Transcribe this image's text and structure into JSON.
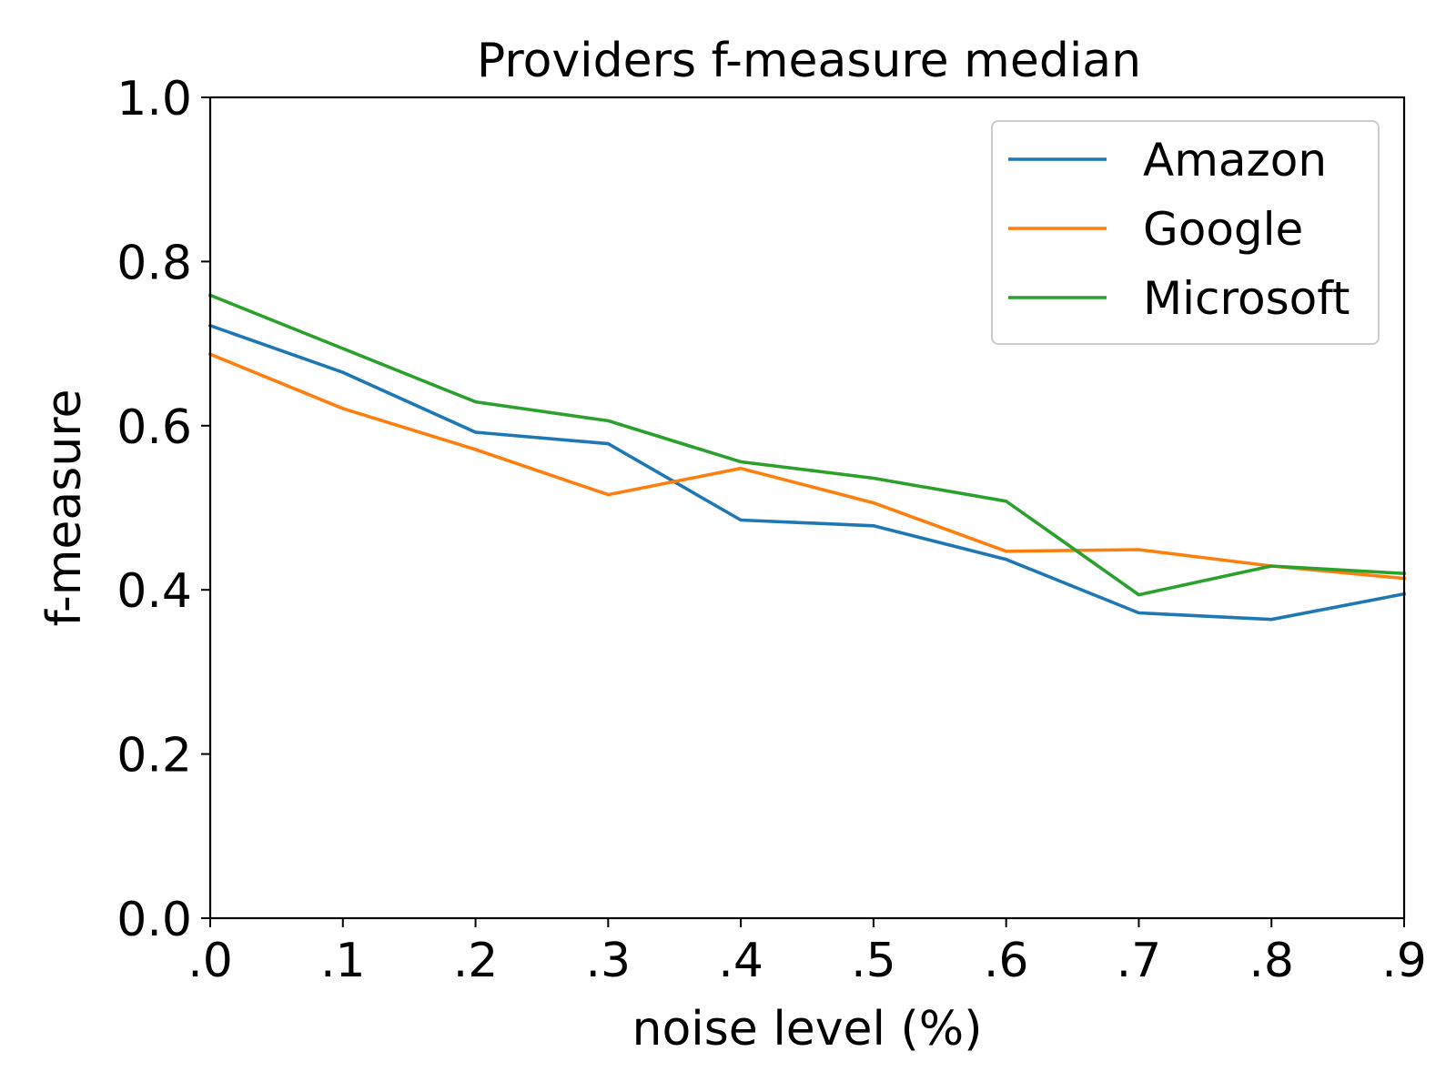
{
  "chart_data": {
    "type": "line",
    "title": "Providers f-measure median",
    "xlabel": "noise level (%)",
    "ylabel": "f-measure",
    "x": [
      0.0,
      0.1,
      0.2,
      0.3,
      0.4,
      0.5,
      0.6,
      0.7,
      0.8,
      0.9
    ],
    "x_tick_labels": [
      ".0",
      ".1",
      ".2",
      ".3",
      ".4",
      ".5",
      ".6",
      ".7",
      ".8",
      ".9"
    ],
    "y_ticks": [
      0.0,
      0.2,
      0.4,
      0.6,
      0.8,
      1.0
    ],
    "y_tick_labels": [
      "0.0",
      "0.2",
      "0.4",
      "0.6",
      "0.8",
      "1.0"
    ],
    "xlim": [
      0.0,
      0.9
    ],
    "ylim": [
      0.0,
      1.0
    ],
    "grid": false,
    "legend_position": "top-right",
    "series": [
      {
        "name": "Amazon",
        "color": "#1f77b4",
        "values": [
          0.722,
          0.665,
          0.592,
          0.578,
          0.485,
          0.478,
          0.437,
          0.372,
          0.364,
          0.395
        ]
      },
      {
        "name": "Google",
        "color": "#ff7f0e",
        "values": [
          0.687,
          0.621,
          0.571,
          0.516,
          0.548,
          0.506,
          0.447,
          0.449,
          0.429,
          0.414
        ]
      },
      {
        "name": "Microsoft",
        "color": "#2ca02c",
        "values": [
          0.759,
          0.694,
          0.629,
          0.606,
          0.556,
          0.536,
          0.508,
          0.394,
          0.429,
          0.42
        ]
      }
    ]
  }
}
